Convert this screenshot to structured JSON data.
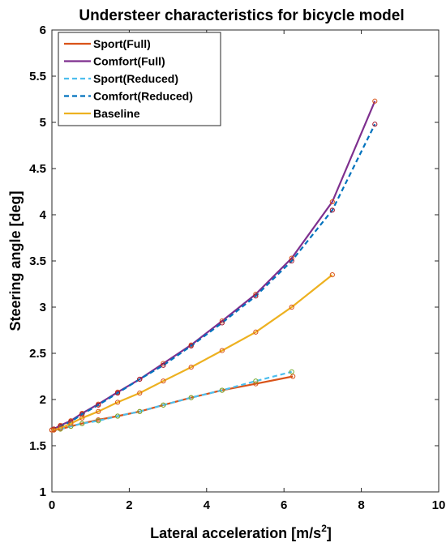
{
  "chart_data": {
    "type": "line",
    "title": "Understeer characteristics for bicycle model",
    "xlabel": "Lateral acceleration [m/s",
    "xlabel_sup": "2",
    "xlabel_close": "]",
    "ylabel": "Steering angle [deg]",
    "xlim": [
      0,
      10
    ],
    "ylim": [
      1,
      6
    ],
    "xticks": [
      0,
      2,
      4,
      6,
      8,
      10
    ],
    "yticks": [
      1,
      1.5,
      2,
      2.5,
      3,
      3.5,
      4,
      4.5,
      5,
      5.5,
      6
    ],
    "xtick_labels": [
      "0",
      "2",
      "4",
      "6",
      "8",
      "10"
    ],
    "ytick_labels": [
      "1",
      "1.5",
      "2",
      "2.5",
      "3",
      "3.5",
      "4",
      "4.5",
      "5",
      "5.5",
      "6"
    ],
    "grid": false,
    "legend_position": "top-left",
    "series": [
      {
        "name": "Sport(Full)",
        "color": "#d95319",
        "dash": "solid",
        "marker_color": "#d95319",
        "x": [
          0,
          0.05,
          0.22,
          0.49,
          0.78,
          1.2,
          1.7,
          2.27,
          2.88,
          3.6,
          4.4,
          5.27,
          6.23
        ],
        "y": [
          1.67,
          1.67,
          1.68,
          1.71,
          1.74,
          1.78,
          1.82,
          1.87,
          1.94,
          2.02,
          2.1,
          2.17,
          2.25
        ]
      },
      {
        "name": "Comfort(Full)",
        "color": "#7e2f8e",
        "dash": "solid",
        "marker_color": "#d95319",
        "x": [
          0,
          0.05,
          0.22,
          0.49,
          0.78,
          1.2,
          1.7,
          2.27,
          2.88,
          3.6,
          4.4,
          5.27,
          6.2,
          7.25,
          8.35
        ],
        "y": [
          1.67,
          1.68,
          1.72,
          1.77,
          1.85,
          1.95,
          2.08,
          2.22,
          2.39,
          2.59,
          2.85,
          3.14,
          3.53,
          4.14,
          5.23
        ]
      },
      {
        "name": "Sport(Reduced)",
        "color": "#4dbeee",
        "dash": "dashed",
        "marker_color": "#77ac30",
        "x": [
          0,
          0.05,
          0.22,
          0.49,
          0.78,
          1.2,
          1.7,
          2.27,
          2.88,
          3.6,
          4.4,
          5.27,
          6.2
        ],
        "y": [
          1.67,
          1.67,
          1.68,
          1.71,
          1.74,
          1.77,
          1.82,
          1.87,
          1.94,
          2.02,
          2.1,
          2.2,
          2.3
        ]
      },
      {
        "name": "Comfort(Reduced)",
        "color": "#0072bd",
        "dash": "dashed",
        "marker_color": "#a2142f",
        "x": [
          0,
          0.05,
          0.22,
          0.49,
          0.78,
          1.2,
          1.7,
          2.27,
          2.88,
          3.6,
          4.4,
          5.27,
          6.2,
          7.25,
          8.35
        ],
        "y": [
          1.67,
          1.68,
          1.71,
          1.76,
          1.84,
          1.94,
          2.07,
          2.22,
          2.37,
          2.58,
          2.83,
          3.12,
          3.5,
          4.05,
          4.98
        ]
      },
      {
        "name": "Baseline",
        "color": "#edb120",
        "dash": "solid",
        "marker_color": "#d95319",
        "x": [
          0,
          0.05,
          0.22,
          0.49,
          0.78,
          1.2,
          1.7,
          2.27,
          2.88,
          3.6,
          4.4,
          5.27,
          6.2,
          7.25
        ],
        "y": [
          1.67,
          1.67,
          1.69,
          1.74,
          1.8,
          1.87,
          1.97,
          2.07,
          2.2,
          2.35,
          2.53,
          2.73,
          3.0,
          3.35
        ]
      }
    ]
  }
}
